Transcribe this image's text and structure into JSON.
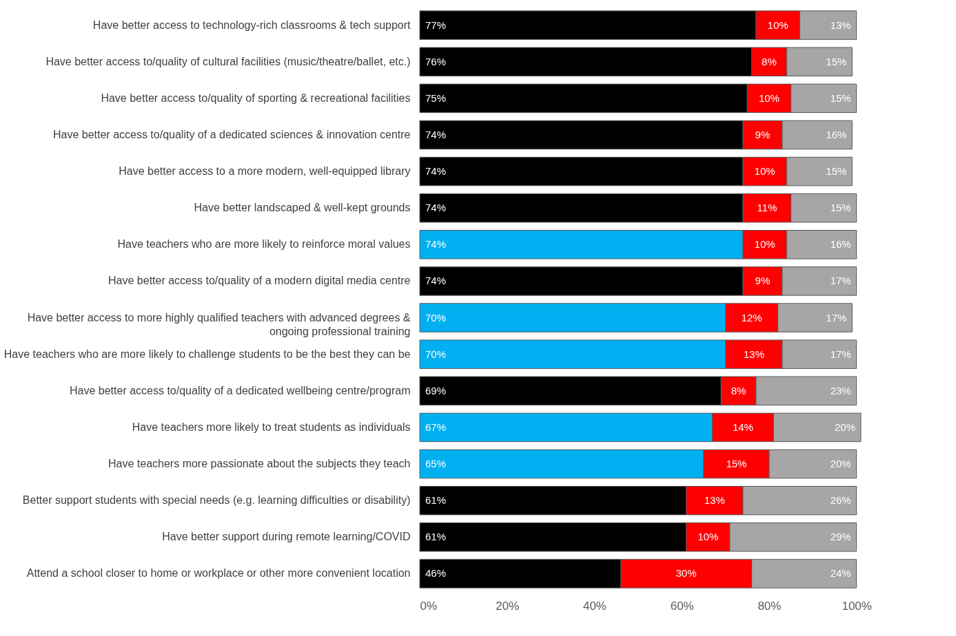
{
  "chart_data": {
    "type": "bar",
    "orientation": "horizontal",
    "stacked": true,
    "categories": [
      "Have better access to technology-rich classrooms & tech support",
      "Have better access to/quality of cultural facilities (music/theatre/ballet, etc.)",
      "Have better access to/quality of sporting & recreational facilities",
      "Have better access to/quality of a dedicated sciences & innovation centre",
      "Have better access to a more modern, well-equipped library",
      "Have better landscaped & well-kept grounds",
      "Have teachers who are more likely to reinforce moral values",
      "Have better access to/quality of a modern digital media centre",
      "Have better access to more highly qualified teachers with advanced degrees & ongoing professional training",
      "Have teachers who are more likely to challenge students to be the best they can be",
      "Have better access to/quality of a dedicated wellbeing centre/program",
      "Have teachers more likely to treat students as individuals",
      "Have teachers more passionate about the subjects they teach",
      "Better support students with special needs (e.g. learning difficulties or disability)",
      "Have better support during remote learning/COVID",
      "Attend a school closer to home or workplace or other more convenient location"
    ],
    "series": [
      {
        "colors": [
          "#000000",
          "#000000",
          "#000000",
          "#000000",
          "#000000",
          "#000000",
          "#00b0f0",
          "#000000",
          "#00b0f0",
          "#00b0f0",
          "#000000",
          "#00b0f0",
          "#00b0f0",
          "#000000",
          "#000000",
          "#000000"
        ],
        "values": [
          77,
          76,
          75,
          74,
          74,
          74,
          74,
          74,
          70,
          70,
          69,
          67,
          65,
          61,
          61,
          46
        ],
        "value_labels": [
          "77%",
          "76%",
          "75%",
          "74%",
          "74%",
          "74%",
          "74%",
          "74%",
          "70%",
          "70%",
          "69%",
          "67%",
          "65%",
          "61%",
          "61%",
          "46%"
        ]
      },
      {
        "color": "#ff0000",
        "values": [
          10,
          8,
          10,
          9,
          10,
          11,
          10,
          9,
          12,
          13,
          8,
          14,
          15,
          13,
          10,
          30
        ],
        "value_labels": [
          "10%",
          "8%",
          "10%",
          "9%",
          "10%",
          "11%",
          "10%",
          "9%",
          "12%",
          "13%",
          "8%",
          "14%",
          "15%",
          "13%",
          "10%",
          "30%"
        ]
      },
      {
        "color": "#a6a6a6",
        "values": [
          13,
          15,
          15,
          16,
          15,
          15,
          16,
          17,
          17,
          17,
          23,
          20,
          20,
          26,
          29,
          24
        ],
        "value_labels": [
          "13%",
          "15%",
          "15%",
          "16%",
          "15%",
          "15%",
          "16%",
          "17%",
          "17%",
          "17%",
          "23%",
          "20%",
          "20%",
          "26%",
          "29%",
          "24%"
        ]
      }
    ],
    "xlim": [
      0,
      101
    ],
    "xticks": [
      {
        "value": 0,
        "label": "0%"
      },
      {
        "value": 20,
        "label": "20%"
      },
      {
        "value": 40,
        "label": "40%"
      },
      {
        "value": 60,
        "label": "60%"
      },
      {
        "value": 80,
        "label": "80%"
      },
      {
        "value": 100,
        "label": "100%"
      }
    ],
    "grid": false
  }
}
